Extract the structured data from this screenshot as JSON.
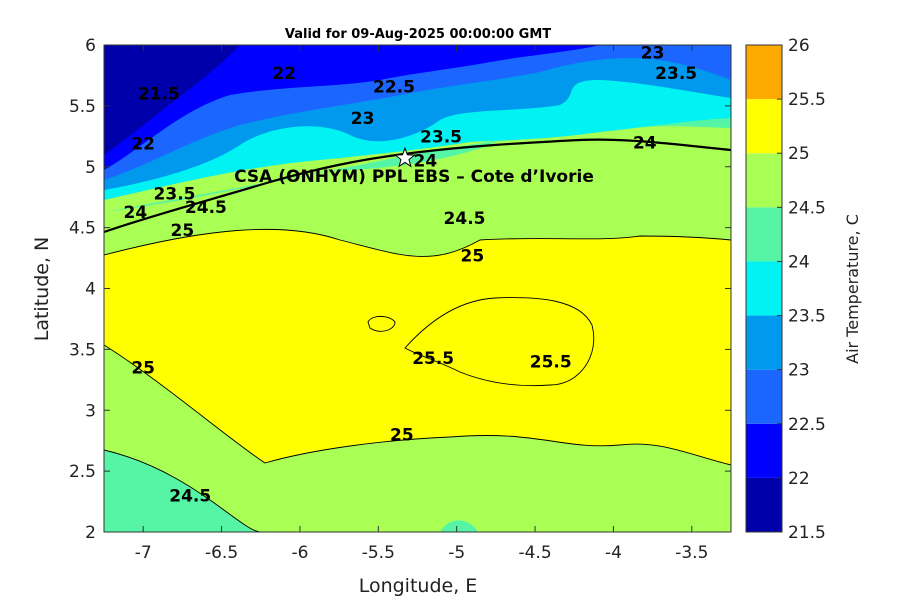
{
  "chart_data": {
    "type": "contour",
    "title": "Valid for 09-Aug-2025 00:00:00 GMT",
    "xlabel": "Longitude, E",
    "ylabel": "Latitude, N",
    "xlim": [
      -7.25,
      -3.25
    ],
    "ylim": [
      2,
      6
    ],
    "x_ticks": [
      -7,
      -6.5,
      -6,
      -5.5,
      -5,
      -4.5,
      -4,
      -3.5
    ],
    "x_tick_labels": [
      "-7",
      "-6.5",
      "-6",
      "-5.5",
      "-5",
      "-4.5",
      "-4",
      "-3.5"
    ],
    "y_ticks": [
      2,
      2.5,
      3,
      3.5,
      4,
      4.5,
      5,
      5.5,
      6
    ],
    "y_tick_labels": [
      "2",
      "2.5",
      "3",
      "3.5",
      "4",
      "4.5",
      "5",
      "5.5",
      "6"
    ],
    "colorbar": {
      "label": "Air Temperature, C",
      "levels": [
        21.5,
        22,
        22.5,
        23,
        23.5,
        24,
        24.5,
        25,
        25.5,
        26
      ],
      "tick_labels": [
        "21.5",
        "22",
        "22.5",
        "23",
        "23.5",
        "24",
        "24.5",
        "25",
        "25.5",
        "26"
      ],
      "colors": [
        "#0000aa",
        "#0000ff",
        "#1a66ff",
        "#0099ee",
        "#00f2f2",
        "#55f5a5",
        "#aaff55",
        "#ffff00",
        "#ffaa00",
        "#ff5500"
      ]
    },
    "contour_labels": [
      {
        "text": "22",
        "lon": -6.1,
        "lat": 5.77
      },
      {
        "text": "22.5",
        "lon": -5.4,
        "lat": 5.66
      },
      {
        "text": "23",
        "lon": -3.75,
        "lat": 5.94
      },
      {
        "text": "23.5",
        "lon": -3.6,
        "lat": 5.77
      },
      {
        "text": "21.5",
        "lon": -6.9,
        "lat": 5.6
      },
      {
        "text": "22",
        "lon": -7.0,
        "lat": 5.19
      },
      {
        "text": "23",
        "lon": -5.6,
        "lat": 5.4
      },
      {
        "text": "23.5",
        "lon": -5.1,
        "lat": 5.25
      },
      {
        "text": "24",
        "lon": -5.2,
        "lat": 5.05
      },
      {
        "text": "24",
        "lon": -3.8,
        "lat": 5.2
      },
      {
        "text": "23.5",
        "lon": -6.8,
        "lat": 4.78
      },
      {
        "text": "24",
        "lon": -7.05,
        "lat": 4.63
      },
      {
        "text": "24.5",
        "lon": -6.6,
        "lat": 4.67
      },
      {
        "text": "25",
        "lon": -6.75,
        "lat": 4.48
      },
      {
        "text": "24.5",
        "lon": -4.95,
        "lat": 4.58
      },
      {
        "text": "25",
        "lon": -4.9,
        "lat": 4.27
      },
      {
        "text": "25.5",
        "lon": -5.15,
        "lat": 3.43
      },
      {
        "text": "25.5",
        "lon": -4.4,
        "lat": 3.4
      },
      {
        "text": "25",
        "lon": -7.0,
        "lat": 3.35
      },
      {
        "text": "25",
        "lon": -5.35,
        "lat": 2.8
      },
      {
        "text": "24.5",
        "lon": -6.7,
        "lat": 2.3
      }
    ],
    "site": {
      "label": "CSA (ONHYM) PPL EBS  – Cote d’Ivorie",
      "lon": -5.33,
      "lat": 5.07,
      "marker": "star"
    }
  }
}
